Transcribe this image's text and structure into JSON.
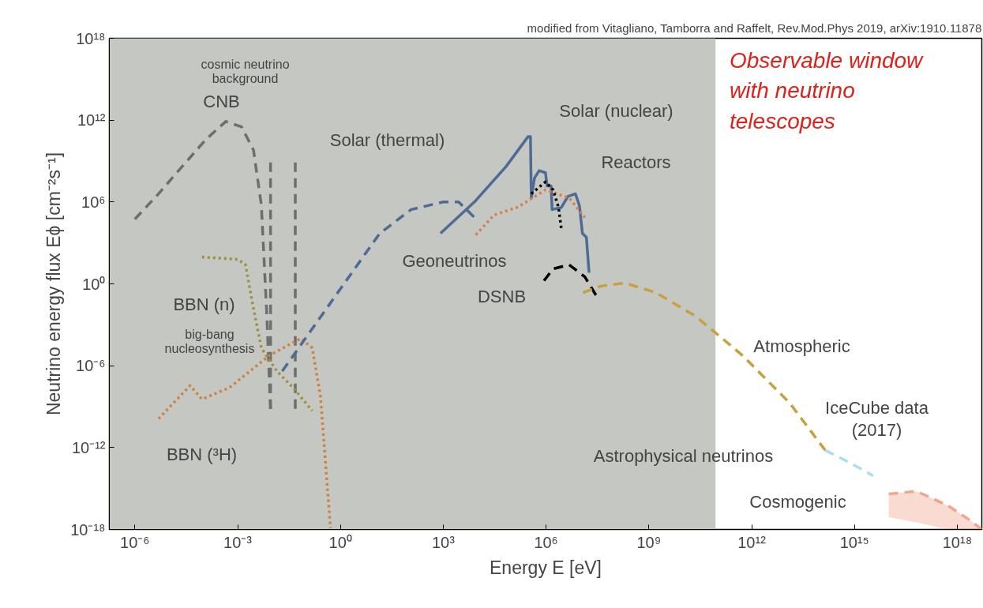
{
  "chart_data": {
    "type": "line",
    "log": "xy",
    "xlabel": "Energy E [eV]",
    "ylabel": "Neutrino energy flux Eϕ [cm⁻²s⁻¹]",
    "xlim": [
      1.8e-07,
      5.2e+18
    ],
    "ylim": [
      1e-18,
      1e+18
    ],
    "xticks": [
      {
        "value": 1e-06,
        "label": "10⁻⁶"
      },
      {
        "value": 0.001,
        "label": "10⁻³"
      },
      {
        "value": 1,
        "label": "10⁰"
      },
      {
        "value": 1000.0,
        "label": "10³"
      },
      {
        "value": 1000000.0,
        "label": "10⁶"
      },
      {
        "value": 1000000000.0,
        "label": "10⁹"
      },
      {
        "value": 1000000000000.0,
        "label": "10¹²"
      },
      {
        "value": 1000000000000000.0,
        "label": "10¹⁵"
      },
      {
        "value": 1e+18,
        "label": "10¹⁸"
      }
    ],
    "yticks": [
      {
        "value": 1e-18,
        "label": "10⁻¹⁸"
      },
      {
        "value": 1e-12,
        "label": "10⁻¹²"
      },
      {
        "value": 1e-06,
        "label": "10⁻⁶"
      },
      {
        "value": 1,
        "label": "10⁰"
      },
      {
        "value": 1000000.0,
        "label": "10⁶"
      },
      {
        "value": 1000000000000.0,
        "label": "10¹²"
      },
      {
        "value": 1e+18,
        "label": "10¹⁸"
      }
    ],
    "grid": false,
    "bands": [
      {
        "axis": "x",
        "from": 1.8e-07,
        "to": 87000000000.0,
        "label": "Observable window\nwith neutrino\ntelescopes",
        "color": "#c4c7c2"
      }
    ],
    "series": [
      {
        "color": "#6e6e6e",
        "line_style": "dashed",
        "x": [
          1e-06,
          4.9e-06,
          2.4e-05,
          0.00012,
          0.00045,
          0.0013,
          0.0029,
          0.0049,
          0.0071,
          0.0091
        ],
        "values": [
          56000.0,
          4000000.0,
          400000000.0,
          40000000000.0,
          800000000000.0,
          320000000000.0,
          6300000000.0,
          630000.0,
          0.005,
          5e-10
        ]
      },
      {
        "color": "#6e6e6e",
        "line_style": "dashed",
        "x": [
          0.0091,
          0.0091
        ],
        "values": [
          800000000.0,
          5e-10
        ]
      },
      {
        "color": "#6e6e6e",
        "line_style": "dashed",
        "x": [
          0.048,
          0.048
        ],
        "values": [
          800000000.0,
          5e-10
        ]
      },
      {
        "color": "#a09040",
        "line_style": "dotted",
        "x": [
          9.1e-05,
          0.001,
          0.0017,
          0.0026,
          0.0049,
          0.014,
          0.041,
          0.15
        ],
        "values": [
          93,
          63,
          25,
          0.063,
          2e-05,
          4e-07,
          2.5e-08,
          5e-10
        ]
      },
      {
        "color": "#d08040",
        "line_style": "dotted",
        "x": [
          4.9e-06,
          4.1e-05,
          9.1e-05,
          0.00058,
          0.0083,
          0.069,
          0.15,
          0.26,
          0.51
        ],
        "values": [
          1.3e-10,
          3.5e-08,
          3.5e-09,
          2.5e-08,
          5.5e-06,
          0.0001,
          2e-05,
          6.3e-09,
          1.26e-18
        ]
      },
      {
        "color": "#4e6b94",
        "line_style": "dashed",
        "x": [
          0.02,
          0.58,
          14,
          115,
          980,
          2800,
          7900
        ],
        "values": [
          4e-07,
          0.063,
          5000.0,
          280000.0,
          1000000.0,
          1000000.0,
          80000.0
        ]
      },
      {
        "color": "#4e6b94",
        "line_style": "solid",
        "x": [
          830,
          8100,
          68000.0,
          300000.0,
          350000.0,
          370000.0,
          460000.0,
          630000.0,
          960000.0,
          1070000.0,
          1400000.0,
          1500000.0,
          2800000.0,
          4300000.0,
          7200000.0,
          9400000.0,
          11500000.0,
          15000000.0,
          18000000.0
        ],
        "values": [
          5000.0,
          1000000.0,
          400000000.0,
          63000000000.0,
          63000000000.0,
          2000000.0,
          58000000.0,
          200000000.0,
          140000000.0,
          15000000.0,
          15000000.0,
          280000.0,
          400000.0,
          2500000.0,
          4000000.0,
          540000.0,
          5000.0,
          2600.0,
          6.5
        ]
      },
      {
        "color": "#d9804a",
        "line_style": "dotted",
        "x": [
          8900,
          30000.0,
          150000.0,
          960000.0,
          4700000.0,
          13500000.0
        ],
        "values": [
          3900,
          110000.0,
          420000.0,
          7800000.0,
          2000000.0,
          73000.0
        ]
      },
      {
        "color": "#000000",
        "line_style": "dotted",
        "x": [
          370000.0,
          960000.0,
          1600000.0,
          2300000.0,
          2800000.0
        ],
        "values": [
          4000000.0,
          30000000.0,
          7800000.0,
          420000.0,
          10000.0
        ]
      },
      {
        "color": "#000000",
        "line_style": "dashed",
        "x": [
          870000.0,
          1600000.0,
          4700000.0,
          13500000.0,
          30000000.0
        ],
        "values": [
          1.7,
          12.6,
          25,
          3.3,
          0.12
        ]
      },
      {
        "color": "#c8a040",
        "line_style": "dashed",
        "x": [
          12000000.0,
          39000000.0,
          200000000.0,
          1600000000.0,
          23000000000.0,
          550000000000.0,
          13000000000000.0,
          140000000000000.0
        ],
        "values": [
          0.23,
          0.68,
          1.15,
          0.23,
          0.0043,
          5.5e-06,
          1.8e-09,
          6.3e-13
        ]
      },
      {
        "color": "#a8dff0",
        "line_style": "dashed",
        "x": [
          140000000000000.0,
          700000000000000.0,
          3500000000000000.0
        ],
        "values": [
          6.3e-13,
          8.3e-14,
          8.7e-15
        ]
      },
      {
        "color": "#f2a58e",
        "line_style": "dashed",
        "x": [
          1e+16,
          6.5e+16,
          5.4e+17,
          2.6e+18,
          5.2e+18
        ],
        "values": [
          4e-16,
          6.3e-16,
          5.5e-17,
          4e-18,
          1e-18
        ],
        "lower": [
          8e-18,
          3.2e-18,
          1e-18,
          1e-18,
          1e-18
        ],
        "upper": [
          4e-16,
          6.3e-16,
          5.5e-17,
          4e-18,
          1e-18
        ]
      }
    ],
    "annotations": [
      "modified from Vitagliano, Tamborra and Raffelt, Rev.Mod.Phys 2019, arXiv:1910.11878",
      "cosmic neutrino\nbackground",
      "CNB",
      "Solar (thermal)",
      "Solar (nuclear)",
      "Reactors",
      "Geoneutrinos",
      "DSNB",
      "Atmospheric",
      "IceCube data\n(2017)",
      "Astrophysical neutrinos",
      "Cosmogenic",
      "BBN (n)",
      "big-bang\nnucleosynthesis",
      "BBN (³H)"
    ]
  }
}
